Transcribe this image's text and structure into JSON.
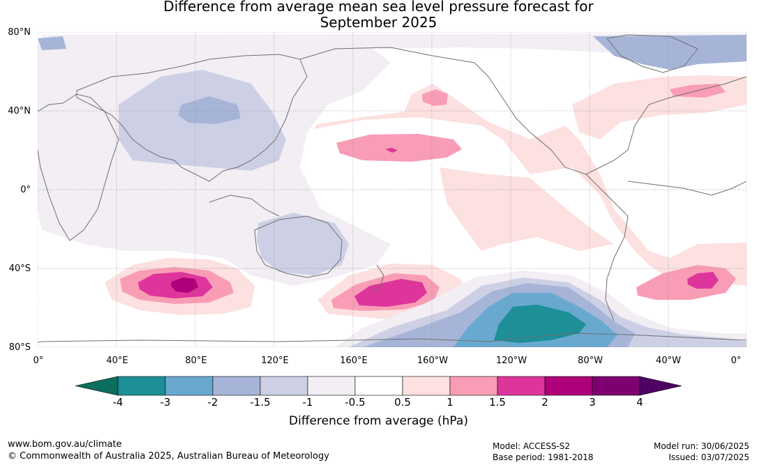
{
  "title": {
    "line1": "Difference from average mean sea level pressure forecast for",
    "line2": "September 2025"
  },
  "map": {
    "projection": "equirectangular, 0°–360°E, 80°S–80°N",
    "background_color": "#ffffff",
    "coastline_color": "#6e6e6e",
    "gridline_color": "#888888",
    "lat_labels": [
      "80°N",
      "40°N",
      "0°",
      "40°S",
      "80°S"
    ],
    "lon_labels": [
      "0°",
      "40°E",
      "80°E",
      "120°E",
      "160°E",
      "160°W",
      "120°W",
      "80°W",
      "40°W",
      "0°"
    ]
  },
  "colorbar": {
    "title": "Difference from average (hPa)",
    "tick_labels": [
      "-4",
      "-3",
      "-2",
      "-1.5",
      "-1",
      "-0.5",
      "0.5",
      "1",
      "1.5",
      "2",
      "3",
      "4"
    ],
    "under_color": "#0b6e5e",
    "over_color": "#4f0063",
    "colors": [
      "#1c8f97",
      "#69a9d0",
      "#a6b5d7",
      "#cdd0e5",
      "#f2eef4",
      "#ffffff",
      "#fde0e0",
      "#f89db5",
      "#dd359b",
      "#ad0079",
      "#7f0070"
    ]
  },
  "footer": {
    "url": "www.bom.gov.au/climate",
    "copyright": "© Commonwealth of Australia 2025, Australian Bureau of Meteorology",
    "model": "Model: ACCESS-S2",
    "base_period": "Base period: 1981-2018",
    "model_run": "Model run: 30/06/2025",
    "issued": "Issued: 03/07/2025"
  }
}
